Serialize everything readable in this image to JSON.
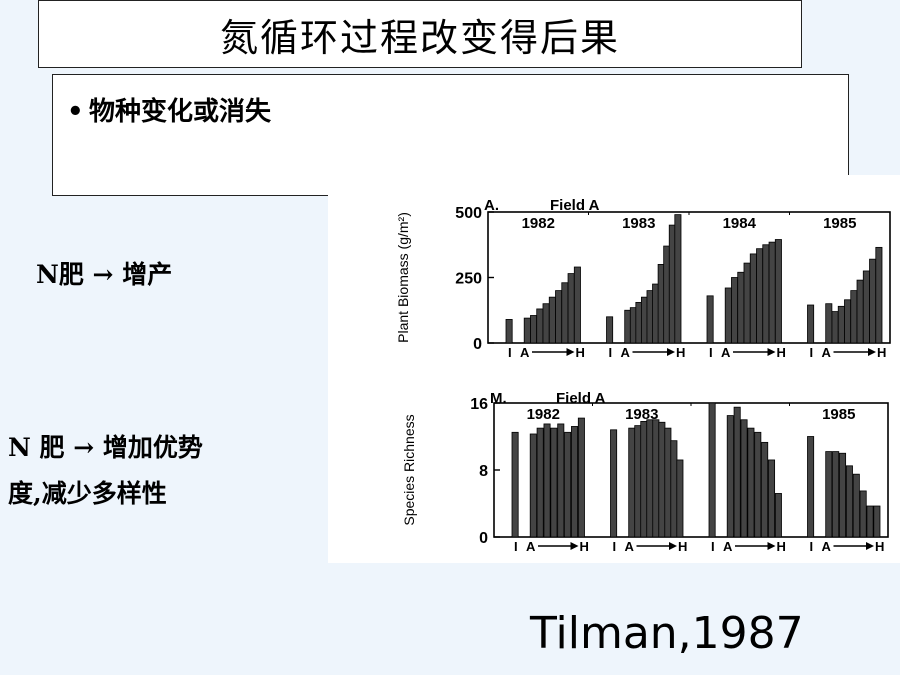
{
  "title": "氮循环过程改变得后果",
  "bullet": {
    "symbol": "•",
    "text": "物种变化或消失"
  },
  "side": {
    "line1": "N肥 → 增产",
    "line2a": "N 肥 → 增加优势",
    "line2b": "度,减少多样性"
  },
  "citation": "Tilman,1987",
  "chart_data": [
    {
      "type": "bar",
      "panel_label": "A.",
      "title": "Field A",
      "ylabel": "Plant Biomass (g/m²)",
      "ylim": [
        0,
        500
      ],
      "yticks": [
        0,
        250,
        500
      ],
      "xtick_labels": [
        "I",
        "A",
        "H"
      ],
      "groups": [
        {
          "name": "1982",
          "values": [
            90,
            95,
            105,
            130,
            150,
            175,
            200,
            230,
            265,
            290
          ]
        },
        {
          "name": "1983",
          "values": [
            100,
            125,
            135,
            155,
            175,
            200,
            225,
            300,
            370,
            450,
            490
          ]
        },
        {
          "name": "1984",
          "values": [
            180,
            210,
            250,
            270,
            305,
            340,
            360,
            375,
            385,
            395
          ]
        },
        {
          "name": "1985",
          "values": [
            145,
            150,
            120,
            140,
            165,
            200,
            240,
            275,
            320,
            365
          ]
        }
      ]
    },
    {
      "type": "bar",
      "panel_label": "M.",
      "title": "Field A",
      "ylabel": "Species Richness",
      "ylim": [
        0,
        16
      ],
      "yticks": [
        0,
        8,
        16
      ],
      "xtick_labels": [
        "I",
        "A",
        "H"
      ],
      "groups": [
        {
          "name": "1982",
          "values": [
            12.5,
            12.3,
            13,
            13.5,
            13,
            13.5,
            12.5,
            13.2,
            14.2
          ]
        },
        {
          "name": "1983",
          "values": [
            12.8,
            13,
            13.3,
            13.8,
            14,
            14,
            13.7,
            13,
            11.5,
            9.2
          ]
        },
        {
          "name": "",
          "values": [
            16,
            14.5,
            15.5,
            14,
            13,
            12.5,
            11.3,
            9.2,
            5.2
          ]
        },
        {
          "name": "1985",
          "values": [
            12,
            10.2,
            10.2,
            10,
            8.5,
            7.5,
            5.5,
            3.7,
            3.7
          ]
        }
      ]
    }
  ]
}
